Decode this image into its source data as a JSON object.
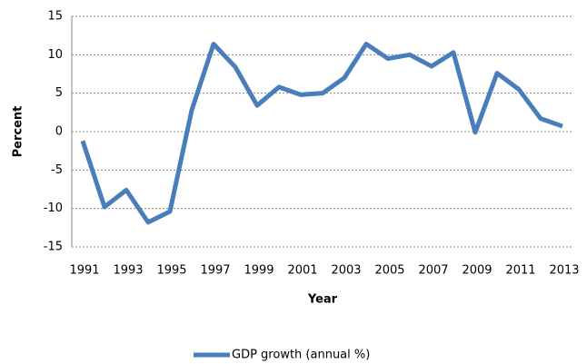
{
  "chart_data": {
    "type": "line",
    "x_label": "Year",
    "y_label": "Percent",
    "categories": [
      "1991",
      null,
      "1993",
      null,
      "1995",
      null,
      "1997",
      null,
      "1999",
      null,
      "2001",
      null,
      "2003",
      null,
      "2005",
      null,
      "2007",
      null,
      "2009",
      null,
      "2011",
      null,
      "2013"
    ],
    "series": [
      {
        "name": "GDP growth (annual %)",
        "color": "#4a7ebb",
        "values": [
          -1.2,
          -9.8,
          -7.6,
          -11.8,
          -10.4,
          2.8,
          11.4,
          8.4,
          3.4,
          5.8,
          4.8,
          5.0,
          7.0,
          11.4,
          9.5,
          10.0,
          8.5,
          10.3,
          -0.1,
          7.6,
          5.5,
          1.7,
          0.7
        ]
      }
    ],
    "ylim": [
      -15,
      15
    ],
    "yticks": [
      -15,
      -10,
      -5,
      0,
      5,
      10,
      15
    ],
    "grid": true,
    "legend": "bottom"
  }
}
